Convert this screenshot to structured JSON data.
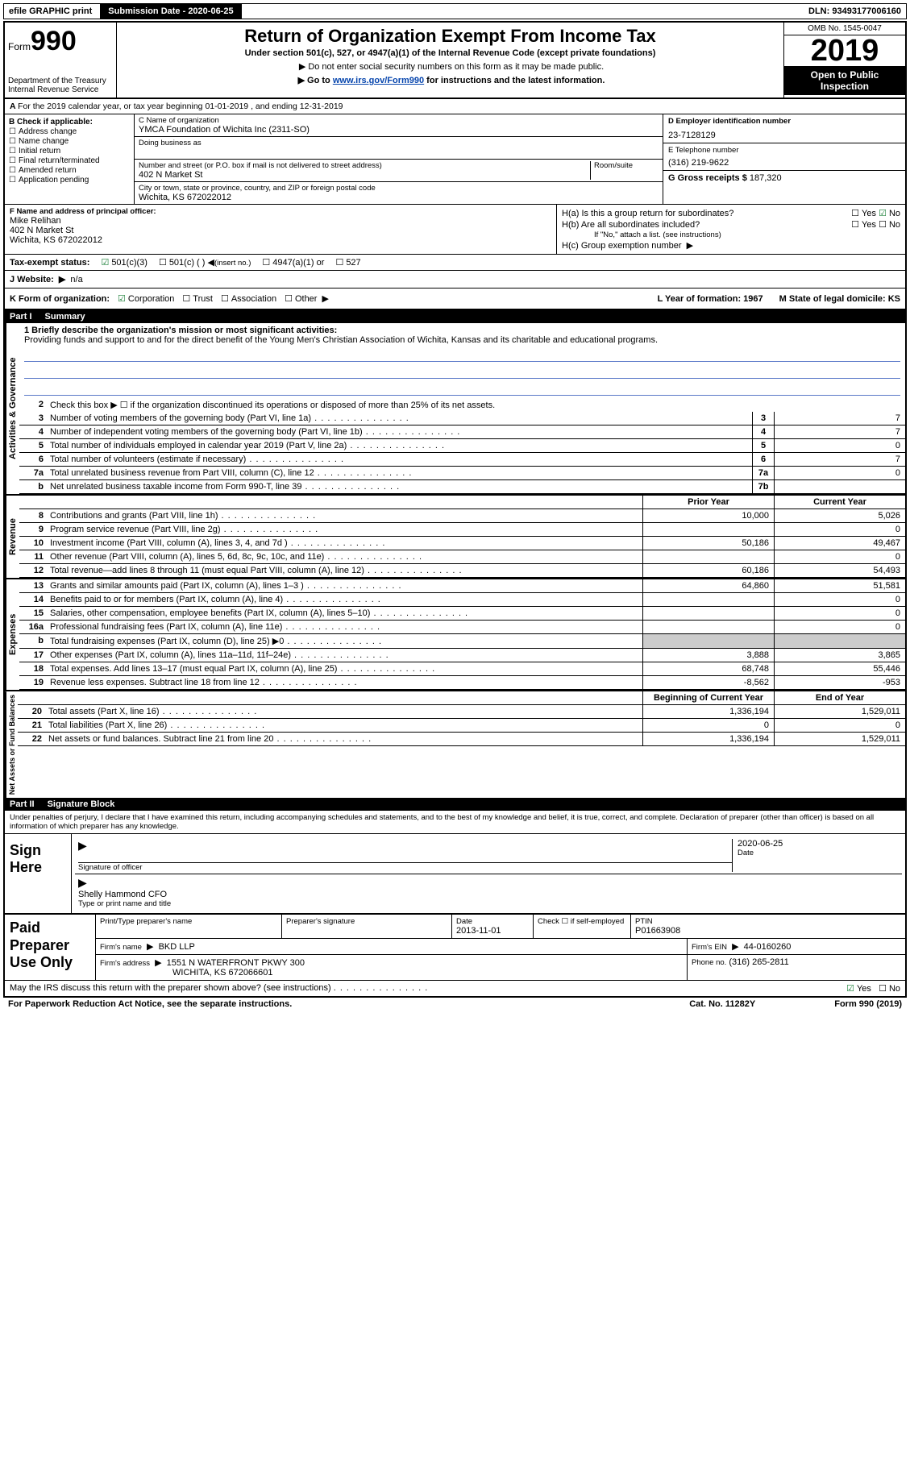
{
  "topbar": {
    "efile": "efile GRAPHIC print",
    "submission_label": "Submission Date - 2020-06-25",
    "dln": "DLN: 93493177006160"
  },
  "header": {
    "form_word": "Form",
    "form_num": "990",
    "dept": "Department of the Treasury\nInternal Revenue Service",
    "title": "Return of Organization Exempt From Income Tax",
    "sub": "Under section 501(c), 527, or 4947(a)(1) of the Internal Revenue Code (except private foundations)",
    "note1": "Do not enter social security numbers on this form as it may be made public.",
    "note2_pre": "Go to ",
    "note2_link": "www.irs.gov/Form990",
    "note2_post": " for instructions and the latest information.",
    "omb": "OMB No. 1545-0047",
    "year": "2019",
    "inspect": "Open to Public Inspection"
  },
  "lineA": "For the 2019 calendar year, or tax year beginning 01-01-2019    , and ending 12-31-2019",
  "boxB": {
    "title": "B Check if applicable:",
    "opts": [
      "Address change",
      "Name change",
      "Initial return",
      "Final return/terminated",
      "Amended return",
      "Application pending"
    ]
  },
  "boxC": {
    "name_lbl": "C Name of organization",
    "name": "YMCA Foundation of Wichita Inc (2311-SO)",
    "dba_lbl": "Doing business as",
    "addr_lbl": "Number and street (or P.O. box if mail is not delivered to street address)",
    "addr": "402 N Market St",
    "room_lbl": "Room/suite",
    "city_lbl": "City or town, state or province, country, and ZIP or foreign postal code",
    "city": "Wichita, KS  672022012"
  },
  "boxD": {
    "lbl": "D Employer identification number",
    "val": "23-7128129"
  },
  "boxE": {
    "lbl": "E Telephone number",
    "val": "(316) 219-9622"
  },
  "boxG": {
    "lbl": "G Gross receipts $",
    "val": "187,320"
  },
  "boxF": {
    "lbl": "F  Name and address of principal officer:",
    "name": "Mike Relihan",
    "addr1": "402 N Market St",
    "addr2": "Wichita, KS  672022012"
  },
  "boxH": {
    "a_lbl": "H(a)  Is this a group return for subordinates?",
    "b_lbl": "H(b)  Are all subordinates included?",
    "b_note": "If \"No,\" attach a list. (see instructions)",
    "c_lbl": "H(c)  Group exemption number",
    "yes": "Yes",
    "no": "No"
  },
  "taxex": {
    "lbl": "Tax-exempt status:",
    "o1": "501(c)(3)",
    "o2": "501(c) (   )",
    "o2b": "(insert no.)",
    "o3": "4947(a)(1) or",
    "o4": "527"
  },
  "boxJ": {
    "lbl": "J   Website:",
    "val": "n/a"
  },
  "lineK": {
    "lbl": "K Form of organization:",
    "corp": "Corporation",
    "trust": "Trust",
    "assoc": "Association",
    "other": "Other",
    "L": "L Year of formation: 1967",
    "M": "M State of legal domicile: KS"
  },
  "part1": {
    "label": "Part I",
    "title": "Summary"
  },
  "mission": {
    "q": "1  Briefly describe the organization's mission or most significant activities:",
    "text": "Providing funds and support to and for the direct benefit of the Young Men's Christian Association of Wichita, Kansas and its charitable and educational programs."
  },
  "sum_sections": {
    "gov": {
      "label": "Activities & Governance",
      "l2": "Check this box ▶ ☐  if the organization discontinued its operations or disposed of more than 25% of its net assets.",
      "rows": [
        {
          "n": "3",
          "t": "Number of voting members of the governing body (Part VI, line 1a)",
          "box": "3",
          "v": "7"
        },
        {
          "n": "4",
          "t": "Number of independent voting members of the governing body (Part VI, line 1b)",
          "box": "4",
          "v": "7"
        },
        {
          "n": "5",
          "t": "Total number of individuals employed in calendar year 2019 (Part V, line 2a)",
          "box": "5",
          "v": "0"
        },
        {
          "n": "6",
          "t": "Total number of volunteers (estimate if necessary)",
          "box": "6",
          "v": "7"
        },
        {
          "n": "7a",
          "t": "Total unrelated business revenue from Part VIII, column (C), line 12",
          "box": "7a",
          "v": "0"
        },
        {
          "n": "b",
          "t": "Net unrelated business taxable income from Form 990-T, line 39",
          "box": "7b",
          "v": ""
        }
      ]
    },
    "rev": {
      "label": "Revenue",
      "py_hdr": "Prior Year",
      "cy_hdr": "Current Year",
      "rows": [
        {
          "n": "8",
          "t": "Contributions and grants (Part VIII, line 1h)",
          "py": "10,000",
          "cy": "5,026"
        },
        {
          "n": "9",
          "t": "Program service revenue (Part VIII, line 2g)",
          "py": "",
          "cy": "0"
        },
        {
          "n": "10",
          "t": "Investment income (Part VIII, column (A), lines 3, 4, and 7d )",
          "py": "50,186",
          "cy": "49,467"
        },
        {
          "n": "11",
          "t": "Other revenue (Part VIII, column (A), lines 5, 6d, 8c, 9c, 10c, and 11e)",
          "py": "",
          "cy": "0"
        },
        {
          "n": "12",
          "t": "Total revenue—add lines 8 through 11 (must equal Part VIII, column (A), line 12)",
          "py": "60,186",
          "cy": "54,493"
        }
      ]
    },
    "exp": {
      "label": "Expenses",
      "rows": [
        {
          "n": "13",
          "t": "Grants and similar amounts paid (Part IX, column (A), lines 1–3 )",
          "py": "64,860",
          "cy": "51,581"
        },
        {
          "n": "14",
          "t": "Benefits paid to or for members (Part IX, column (A), line 4)",
          "py": "",
          "cy": "0"
        },
        {
          "n": "15",
          "t": "Salaries, other compensation, employee benefits (Part IX, column (A), lines 5–10)",
          "py": "",
          "cy": "0"
        },
        {
          "n": "16a",
          "t": "Professional fundraising fees (Part IX, column (A), line 11e)",
          "py": "",
          "cy": "0"
        },
        {
          "n": "b",
          "t": "Total fundraising expenses (Part IX, column (D), line 25) ▶0",
          "py": "SHADE",
          "cy": "SHADE"
        },
        {
          "n": "17",
          "t": "Other expenses (Part IX, column (A), lines 11a–11d, 11f–24e)",
          "py": "3,888",
          "cy": "3,865"
        },
        {
          "n": "18",
          "t": "Total expenses. Add lines 13–17 (must equal Part IX, column (A), line 25)",
          "py": "68,748",
          "cy": "55,446"
        },
        {
          "n": "19",
          "t": "Revenue less expenses. Subtract line 18 from line 12",
          "py": "-8,562",
          "cy": "-953"
        }
      ]
    },
    "net": {
      "label": "Net Assets or Fund Balances",
      "py_hdr": "Beginning of Current Year",
      "cy_hdr": "End of Year",
      "rows": [
        {
          "n": "20",
          "t": "Total assets (Part X, line 16)",
          "py": "1,336,194",
          "cy": "1,529,011"
        },
        {
          "n": "21",
          "t": "Total liabilities (Part X, line 26)",
          "py": "0",
          "cy": "0"
        },
        {
          "n": "22",
          "t": "Net assets or fund balances. Subtract line 21 from line 20",
          "py": "1,336,194",
          "cy": "1,529,011"
        }
      ]
    }
  },
  "part2": {
    "label": "Part II",
    "title": "Signature Block"
  },
  "sig_decl": "Under penalties of perjury, I declare that I have examined this return, including accompanying schedules and statements, and to the best of my knowledge and belief, it is true, correct, and complete. Declaration of preparer (other than officer) is based on all information of which preparer has any knowledge.",
  "sign": {
    "here": "Sign Here",
    "sig_lbl": "Signature of officer",
    "date_lbl": "Date",
    "date": "2020-06-25",
    "name": "Shelly Hammond CFO",
    "name_lbl": "Type or print name and title"
  },
  "paid": {
    "label": "Paid Preparer Use Only",
    "c1": "Print/Type preparer's name",
    "c2": "Preparer's signature",
    "c3": "Date",
    "c3v": "2013-11-01",
    "c4": "Check ☐ if self-employed",
    "c5": "PTIN",
    "c5v": "P01663908",
    "firm_lbl": "Firm's name",
    "firm": "BKD LLP",
    "ein_lbl": "Firm's EIN",
    "ein": "44-0160260",
    "addr_lbl": "Firm's address",
    "addr1": "1551 N WATERFRONT PKWY 300",
    "addr2": "WICHITA, KS  672066601",
    "phone_lbl": "Phone no.",
    "phone": "(316) 265-2811"
  },
  "discuss": "May the IRS discuss this return with the preparer shown above? (see instructions)",
  "discuss_yes": "Yes",
  "discuss_no": "No",
  "footer": {
    "pra": "For Paperwork Reduction Act Notice, see the separate instructions.",
    "cat": "Cat. No. 11282Y",
    "form": "Form 990 (2019)"
  }
}
